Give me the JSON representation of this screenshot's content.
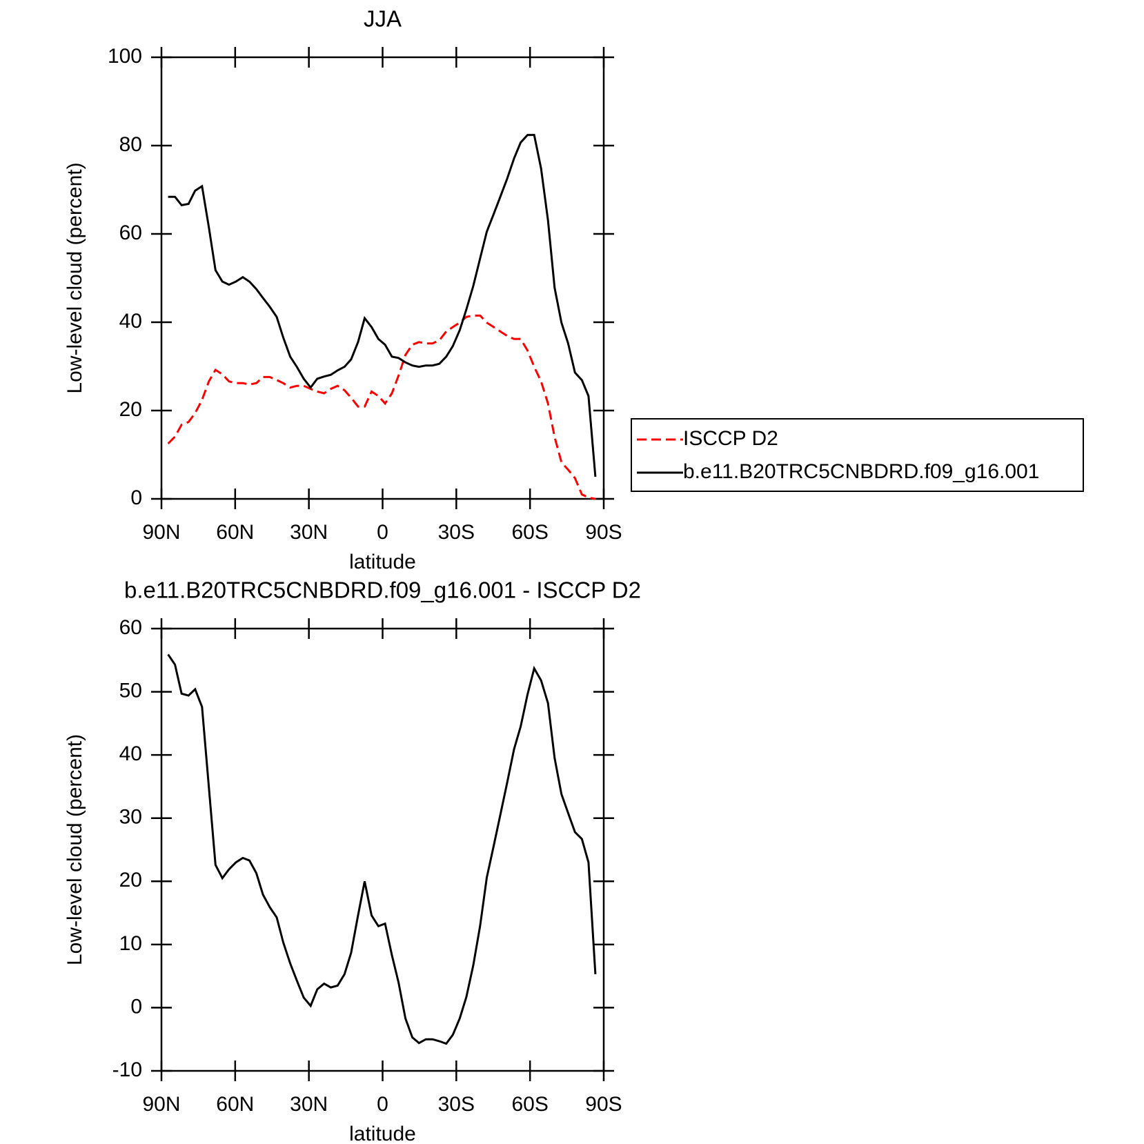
{
  "chart_data": [
    {
      "type": "line",
      "title": "JJA",
      "xlabel": "latitude",
      "ylabel": "Low-level cloud (percent)",
      "x": [
        87.3,
        84.5,
        81.8,
        79.0,
        76.3,
        73.5,
        70.7,
        68.0,
        65.2,
        62.5,
        59.7,
        56.9,
        54.2,
        51.4,
        48.7,
        45.9,
        43.1,
        40.4,
        37.6,
        34.9,
        32.1,
        29.3,
        26.6,
        23.8,
        21.1,
        18.3,
        15.5,
        12.8,
        10.0,
        7.3,
        4.5,
        1.7,
        -1.0,
        -3.8,
        -6.5,
        -9.3,
        -12.1,
        -14.8,
        -17.6,
        -20.3,
        -23.1,
        -25.9,
        -28.6,
        -31.4,
        -34.1,
        -36.9,
        -39.7,
        -42.4,
        -45.2,
        -47.9,
        -50.7,
        -53.5,
        -56.2,
        -59.0,
        -61.7,
        -64.5,
        -67.3,
        -70.0,
        -72.8,
        -75.5,
        -78.3,
        -81.1,
        -83.8,
        -86.6
      ],
      "series": [
        {
          "name": "ISCCP D2",
          "color": "#ff0000",
          "style": "dashed",
          "values": [
            12.5,
            14.1,
            16.8,
            17.4,
            19.4,
            22.4,
            26.6,
            29.2,
            28.2,
            26.6,
            26.2,
            26.2,
            25.9,
            26.2,
            27.6,
            27.6,
            26.9,
            26.2,
            25.2,
            25.6,
            25.6,
            24.9,
            24.3,
            23.9,
            24.9,
            25.6,
            24.6,
            22.9,
            20.9,
            20.9,
            24.3,
            23.3,
            21.6,
            23.9,
            27.9,
            32.6,
            34.9,
            35.5,
            35.2,
            35.2,
            35.9,
            37.9,
            38.9,
            39.9,
            41.2,
            41.5,
            41.5,
            39.9,
            38.9,
            37.9,
            36.9,
            36.2,
            36.2,
            33.6,
            29.9,
            26.6,
            21.6,
            14.0,
            8.3,
            6.6,
            4.7,
            1.0,
            0.3,
            0.0
          ]
        },
        {
          "name": "b.e11.B20TRC5CNBDRD.f09_g16.001",
          "color": "#000000",
          "style": "solid",
          "values": [
            68.4,
            68.4,
            66.5,
            66.8,
            69.8,
            70.8,
            61.5,
            51.8,
            49.2,
            48.5,
            49.2,
            50.2,
            49.2,
            47.5,
            45.5,
            43.5,
            41.2,
            36.5,
            32.2,
            29.9,
            27.2,
            25.2,
            27.2,
            27.7,
            28.1,
            29.1,
            29.9,
            31.6,
            35.5,
            40.9,
            38.9,
            36.2,
            34.9,
            32.2,
            31.9,
            30.9,
            30.2,
            29.9,
            30.2,
            30.2,
            30.6,
            32.2,
            34.6,
            38.2,
            42.9,
            48.2,
            54.5,
            60.5,
            64.5,
            68.4,
            72.5,
            77.1,
            80.7,
            82.4,
            82.4,
            74.8,
            63.1,
            47.8,
            39.9,
            35.2,
            28.6,
            26.9,
            23.3,
            5.0
          ]
        }
      ],
      "xlim": [
        90,
        -90
      ],
      "xticks": [
        {
          "value": 90,
          "label": "90N"
        },
        {
          "value": 60,
          "label": "60N"
        },
        {
          "value": 30,
          "label": "30N"
        },
        0,
        {
          "value": -30,
          "label": "30S"
        },
        {
          "value": -60,
          "label": "60S"
        },
        {
          "value": -90,
          "label": "90S"
        }
      ],
      "ylim": [
        0,
        100
      ],
      "yticks": [
        0,
        20,
        40,
        60,
        80,
        100
      ],
      "legend": "right"
    },
    {
      "type": "line",
      "title": "b.e11.B20TRC5CNBDRD.f09_g16.001 - ISCCP D2",
      "xlabel": "latitude",
      "ylabel": "Low-level cloud (percent)",
      "x": [
        87.3,
        84.5,
        81.8,
        79.0,
        76.3,
        73.5,
        70.7,
        68.0,
        65.2,
        62.5,
        59.7,
        56.9,
        54.2,
        51.4,
        48.7,
        45.9,
        43.1,
        40.4,
        37.6,
        34.9,
        32.1,
        29.3,
        26.6,
        23.8,
        21.1,
        18.3,
        15.5,
        12.8,
        10.0,
        7.3,
        4.5,
        1.7,
        -1.0,
        -3.8,
        -6.5,
        -9.3,
        -12.1,
        -14.8,
        -17.6,
        -20.3,
        -23.1,
        -25.9,
        -28.6,
        -31.4,
        -34.1,
        -36.9,
        -39.7,
        -42.4,
        -45.2,
        -47.9,
        -50.7,
        -53.5,
        -56.2,
        -59.0,
        -61.7,
        -64.5,
        -67.3,
        -70.0,
        -72.8,
        -75.5,
        -78.3,
        -81.1,
        -83.8,
        -86.6
      ],
      "series": [
        {
          "color": "#000000",
          "style": "solid",
          "values": [
            55.9,
            54.3,
            49.7,
            49.4,
            50.4,
            47.6,
            34.9,
            22.6,
            20.5,
            21.9,
            23.0,
            23.7,
            23.3,
            21.3,
            17.9,
            15.9,
            14.3,
            10.3,
            7.0,
            4.3,
            1.6,
            0.3,
            2.9,
            3.8,
            3.2,
            3.5,
            5.3,
            8.7,
            14.6,
            20.0,
            14.6,
            12.9,
            13.3,
            8.3,
            4.0,
            -1.7,
            -4.7,
            -5.6,
            -5.0,
            -5.0,
            -5.3,
            -5.7,
            -4.3,
            -1.7,
            1.7,
            6.7,
            13.0,
            20.6,
            25.6,
            30.5,
            35.6,
            40.9,
            44.5,
            49.6,
            53.7,
            51.8,
            48.2,
            39.5,
            33.8,
            30.8,
            27.8,
            26.7,
            23.0,
            5.3
          ]
        }
      ],
      "xlim": [
        90,
        -90
      ],
      "xticks": [
        {
          "value": 90,
          "label": "90N"
        },
        {
          "value": 60,
          "label": "60N"
        },
        {
          "value": 30,
          "label": "30N"
        },
        0,
        {
          "value": -30,
          "label": "30S"
        },
        {
          "value": -60,
          "label": "60S"
        },
        {
          "value": -90,
          "label": "90S"
        }
      ],
      "ylim": [
        -10,
        60
      ],
      "yticks": [
        -10,
        0,
        10,
        20,
        30,
        40,
        50,
        60
      ]
    }
  ]
}
